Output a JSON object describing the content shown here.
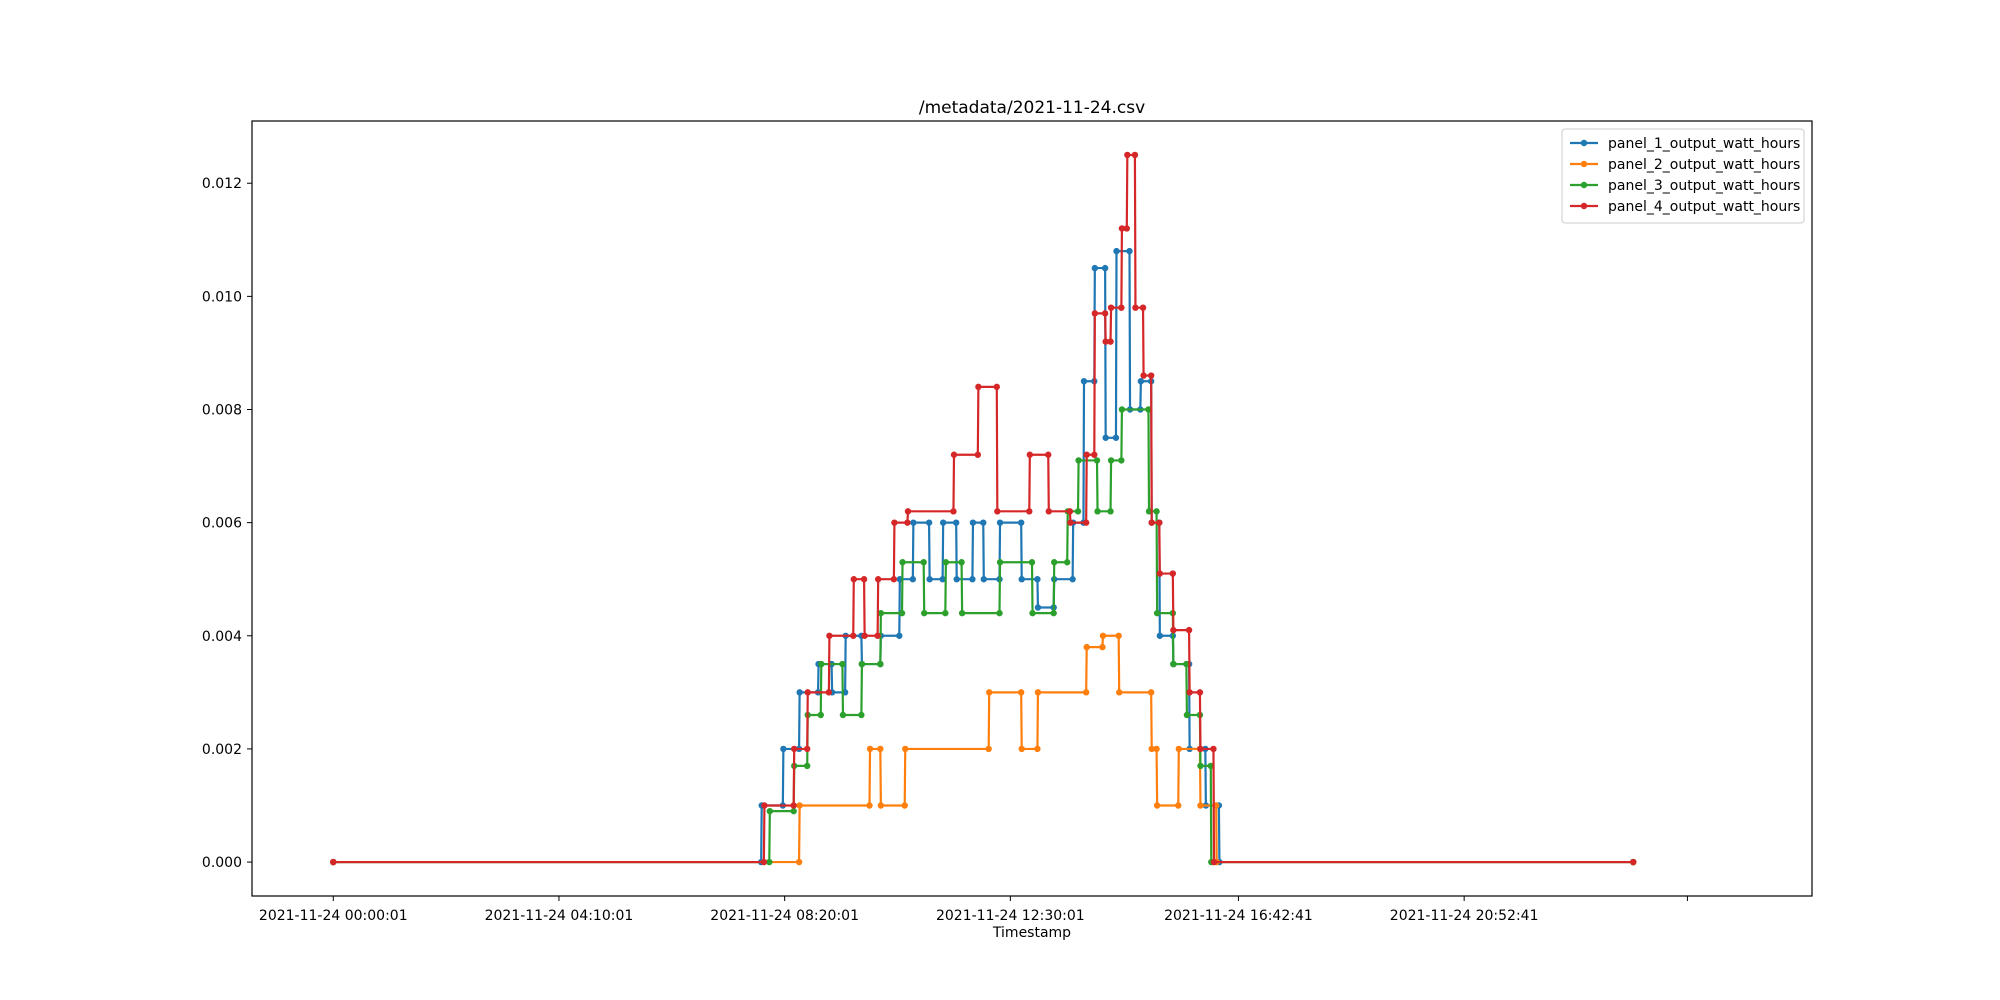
{
  "chart_data": {
    "type": "line",
    "title": "/metadata/2021-11-24.csv",
    "xlabel": "Timestamp",
    "ylabel": "",
    "x_unit": "hours since 2021-11-24 00:00:00",
    "xlim": [
      -1.5,
      27.3
    ],
    "ylim": [
      -0.0006,
      0.0131
    ],
    "x_ticks": [
      {
        "value": 0.0003,
        "label": "2021-11-24 00:00:01"
      },
      {
        "value": 4.1669,
        "label": "2021-11-24 04:10:01"
      },
      {
        "value": 8.3336,
        "label": "2021-11-24 08:20:01"
      },
      {
        "value": 12.5003,
        "label": "2021-11-24 12:30:01"
      },
      {
        "value": 16.7114,
        "label": "2021-11-24 16:42:41"
      },
      {
        "value": 20.8781,
        "label": "2021-11-24 20:52:41"
      },
      {
        "value": 25.0,
        "label": ""
      }
    ],
    "y_ticks": [
      {
        "value": 0.0,
        "label": "0.000"
      },
      {
        "value": 0.002,
        "label": "0.002"
      },
      {
        "value": 0.004,
        "label": "0.004"
      },
      {
        "value": 0.006,
        "label": "0.006"
      },
      {
        "value": 0.008,
        "label": "0.008"
      },
      {
        "value": 0.01,
        "label": "0.010"
      },
      {
        "value": 0.012,
        "label": "0.012"
      }
    ],
    "legend_position": "top-right",
    "series": [
      {
        "name": "panel_1_output_watt_hours",
        "color": "#1f77b4",
        "x": [
          0,
          7.9,
          7.91,
          8.3,
          8.31,
          8.6,
          8.61,
          8.95,
          8.96,
          9.2,
          9.21,
          9.45,
          9.46,
          9.75,
          9.76,
          10.1,
          10.11,
          10.45,
          10.46,
          10.7,
          10.71,
          11.0,
          11.01,
          11.25,
          11.26,
          11.5,
          11.51,
          11.8,
          11.81,
          12.0,
          12.01,
          12.3,
          12.31,
          12.7,
          12.71,
          13.0,
          13.01,
          13.3,
          13.31,
          13.65,
          13.66,
          13.85,
          13.86,
          14.05,
          14.06,
          14.25,
          14.26,
          14.45,
          14.46,
          14.7,
          14.71,
          14.9,
          14.91,
          15.1,
          15.11,
          15.25,
          15.26,
          15.5,
          15.51,
          15.8,
          15.81,
          16.1,
          16.11,
          16.35,
          16.36,
          24.0
        ],
        "y": [
          0,
          0,
          0.001,
          0.001,
          0.002,
          0.002,
          0.003,
          0.003,
          0.0035,
          0.0035,
          0.003,
          0.003,
          0.004,
          0.004,
          0.0035,
          0.0035,
          0.004,
          0.004,
          0.005,
          0.005,
          0.006,
          0.006,
          0.005,
          0.005,
          0.006,
          0.006,
          0.005,
          0.005,
          0.006,
          0.006,
          0.005,
          0.005,
          0.006,
          0.006,
          0.005,
          0.005,
          0.0045,
          0.0045,
          0.005,
          0.005,
          0.006,
          0.006,
          0.0085,
          0.0085,
          0.0105,
          0.0105,
          0.0075,
          0.0075,
          0.0108,
          0.0108,
          0.008,
          0.008,
          0.0085,
          0.0085,
          0.006,
          0.006,
          0.004,
          0.004,
          0.0035,
          0.0035,
          0.002,
          0.002,
          0.001,
          0.001,
          0,
          0
        ]
      },
      {
        "name": "panel_2_output_watt_hours",
        "color": "#ff7f0e",
        "x": [
          0,
          8.6,
          8.61,
          9.9,
          9.91,
          10.1,
          10.11,
          10.55,
          10.56,
          12.1,
          12.11,
          12.7,
          12.71,
          13.0,
          13.01,
          13.9,
          13.91,
          14.2,
          14.21,
          14.5,
          14.51,
          15.1,
          15.11,
          15.2,
          15.21,
          15.6,
          15.61,
          16.0,
          16.01,
          16.3,
          16.31,
          24.0
        ],
        "y": [
          0,
          0,
          0.001,
          0.001,
          0.002,
          0.002,
          0.001,
          0.001,
          0.002,
          0.002,
          0.003,
          0.003,
          0.002,
          0.002,
          0.003,
          0.003,
          0.0038,
          0.0038,
          0.004,
          0.004,
          0.003,
          0.003,
          0.002,
          0.002,
          0.001,
          0.001,
          0.002,
          0.002,
          0.001,
          0.001,
          0,
          0
        ]
      },
      {
        "name": "panel_3_output_watt_hours",
        "color": "#2ca02c",
        "x": [
          0,
          8.05,
          8.06,
          8.5,
          8.51,
          8.75,
          8.76,
          9.0,
          9.01,
          9.4,
          9.41,
          9.75,
          9.76,
          10.1,
          10.11,
          10.5,
          10.51,
          10.9,
          10.91,
          11.3,
          11.31,
          11.6,
          11.61,
          12.3,
          12.31,
          12.9,
          12.91,
          13.3,
          13.31,
          13.55,
          13.56,
          13.75,
          13.76,
          14.1,
          14.11,
          14.35,
          14.36,
          14.55,
          14.56,
          15.05,
          15.06,
          15.2,
          15.21,
          15.5,
          15.51,
          15.75,
          15.76,
          16.0,
          16.01,
          16.2,
          16.21,
          24.0
        ],
        "y": [
          0,
          0,
          0.0009,
          0.0009,
          0.0017,
          0.0017,
          0.0026,
          0.0026,
          0.0035,
          0.0035,
          0.0026,
          0.0026,
          0.0035,
          0.0035,
          0.0044,
          0.0044,
          0.0053,
          0.0053,
          0.0044,
          0.0044,
          0.0053,
          0.0053,
          0.0044,
          0.0044,
          0.0053,
          0.0053,
          0.0044,
          0.0044,
          0.0053,
          0.0053,
          0.0062,
          0.0062,
          0.0071,
          0.0071,
          0.0062,
          0.0062,
          0.0071,
          0.0071,
          0.008,
          0.008,
          0.0062,
          0.0062,
          0.0044,
          0.0044,
          0.0035,
          0.0035,
          0.0026,
          0.0026,
          0.0017,
          0.0017,
          0,
          0
        ]
      },
      {
        "name": "panel_4_output_watt_hours",
        "color": "#d62728",
        "x": [
          0,
          7.95,
          7.96,
          8.5,
          8.51,
          8.75,
          8.76,
          9.15,
          9.16,
          9.6,
          9.61,
          9.8,
          9.81,
          10.05,
          10.06,
          10.35,
          10.36,
          10.6,
          10.61,
          11.45,
          11.46,
          11.9,
          11.91,
          12.25,
          12.26,
          12.85,
          12.86,
          13.2,
          13.21,
          13.6,
          13.61,
          13.9,
          13.91,
          14.05,
          14.06,
          14.25,
          14.26,
          14.35,
          14.36,
          14.55,
          14.56,
          14.65,
          14.66,
          14.8,
          14.81,
          14.95,
          14.96,
          15.1,
          15.11,
          15.25,
          15.26,
          15.5,
          15.51,
          15.8,
          15.81,
          16.0,
          16.01,
          16.25,
          16.26,
          24.0
        ],
        "y": [
          0,
          0,
          0.001,
          0.001,
          0.002,
          0.002,
          0.003,
          0.003,
          0.004,
          0.004,
          0.005,
          0.005,
          0.004,
          0.004,
          0.005,
          0.005,
          0.006,
          0.006,
          0.0062,
          0.0062,
          0.0072,
          0.0072,
          0.0084,
          0.0084,
          0.0062,
          0.0062,
          0.0072,
          0.0072,
          0.0062,
          0.0062,
          0.006,
          0.006,
          0.0072,
          0.0072,
          0.0097,
          0.0097,
          0.0092,
          0.0092,
          0.0098,
          0.0098,
          0.0112,
          0.0112,
          0.0125,
          0.0125,
          0.0098,
          0.0098,
          0.0086,
          0.0086,
          0.006,
          0.006,
          0.0051,
          0.0051,
          0.0041,
          0.0041,
          0.003,
          0.003,
          0.002,
          0.002,
          0,
          0
        ]
      }
    ]
  }
}
